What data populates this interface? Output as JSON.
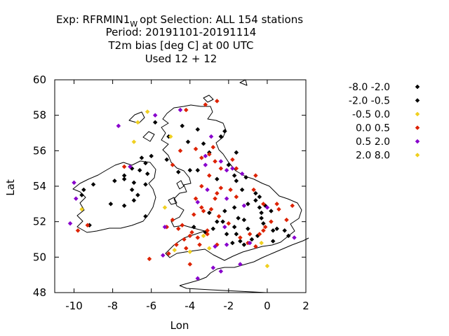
{
  "title": {
    "line1_prefix": "Exp: RFRMIN1",
    "line1_sub": "W",
    "line1_suffix": "opt   Selection: ALL    154 stations",
    "line2": "Period: 20191101-20191114",
    "line3": "T2m bias [deg C] at  00 UTC",
    "line4": "Used  12 + 12"
  },
  "chart_data": {
    "type": "scatter",
    "xlabel": "Lon",
    "ylabel": "Lat",
    "xlim": [
      -11,
      2
    ],
    "ylim": [
      48,
      60
    ],
    "xticks": [
      -10,
      -8,
      -6,
      -4,
      -2,
      0,
      2
    ],
    "yticks": [
      48,
      50,
      52,
      54,
      56,
      58,
      60
    ],
    "grid": false,
    "legend_position": "outside-right",
    "legend": [
      {
        "label": "-8.0 -2.0",
        "color": "#000000"
      },
      {
        "label": "-2.0 -0.5",
        "color": "#000000"
      },
      {
        "label": "-0.5 0.0",
        "color": "#f0d020"
      },
      {
        "label": "0.0 0.5",
        "color": "#dd2200"
      },
      {
        "label": "0.5 2.0",
        "color": "#8800cc"
      },
      {
        "label": "2.0 8.0",
        "color": "#f0d020"
      }
    ],
    "series": [
      {
        "category": 1,
        "points": [
          [
            -5.8,
            57.6
          ],
          [
            -4.4,
            57.4
          ],
          [
            -3.6,
            57.2
          ],
          [
            -2.4,
            56.8
          ],
          [
            -2.2,
            57.1
          ],
          [
            -3.3,
            56.4
          ],
          [
            -4.1,
            56.5
          ],
          [
            -5.1,
            56.8
          ],
          [
            -6.0,
            55.7
          ],
          [
            -6.5,
            55.6
          ],
          [
            -6.3,
            55.3
          ],
          [
            -7.0,
            55.0
          ],
          [
            -6.6,
            54.9
          ],
          [
            -6.2,
            54.7
          ],
          [
            -7.4,
            54.6
          ],
          [
            -6.3,
            54.1
          ],
          [
            -6.9,
            54.2
          ],
          [
            -7.4,
            54.4
          ],
          [
            -7.9,
            54.3
          ],
          [
            -7.0,
            53.8
          ],
          [
            -6.7,
            53.5
          ],
          [
            -6.9,
            53.2
          ],
          [
            -9.0,
            54.1
          ],
          [
            -9.5,
            53.8
          ],
          [
            -9.6,
            53.5
          ],
          [
            -8.1,
            53.0
          ],
          [
            -7.4,
            52.9
          ],
          [
            -6.3,
            52.3
          ],
          [
            -9.2,
            51.8
          ],
          [
            -5.2,
            55.5
          ],
          [
            -4.6,
            54.8
          ],
          [
            -4.0,
            54.9
          ],
          [
            -3.6,
            54.9
          ],
          [
            -3.0,
            55.9
          ],
          [
            -1.6,
            55.9
          ],
          [
            -2.0,
            55.2
          ],
          [
            -1.7,
            54.6
          ],
          [
            -1.1,
            54.5
          ],
          [
            -1.6,
            54.3
          ],
          [
            -2.6,
            54.4
          ],
          [
            -1.3,
            53.8
          ],
          [
            -0.6,
            53.6
          ],
          [
            -0.4,
            53.4
          ],
          [
            -1.0,
            53.0
          ],
          [
            -0.6,
            53.2
          ],
          [
            -1.7,
            52.8
          ],
          [
            -0.4,
            52.8
          ],
          [
            -0.3,
            52.5
          ],
          [
            0.2,
            52.6
          ],
          [
            -0.3,
            52.2
          ],
          [
            -1.2,
            52.1
          ],
          [
            -2.3,
            52.0
          ],
          [
            -1.7,
            51.7
          ],
          [
            -1.0,
            51.6
          ],
          [
            -0.2,
            51.9
          ],
          [
            0.3,
            51.5
          ],
          [
            0.5,
            51.6
          ],
          [
            -2.1,
            51.3
          ],
          [
            -1.6,
            51.3
          ],
          [
            -2.8,
            51.6
          ],
          [
            -3.8,
            51.7
          ],
          [
            -3.2,
            51.4
          ],
          [
            -1.4,
            50.9
          ],
          [
            -0.8,
            51.0
          ],
          [
            -0.5,
            51.2
          ],
          [
            -1.8,
            50.8
          ],
          [
            -1.2,
            50.7
          ],
          [
            0.3,
            50.9
          ],
          [
            0.9,
            51.5
          ],
          [
            1.1,
            51.2
          ],
          [
            -3.0,
            52.5
          ],
          [
            -2.6,
            52.0
          ],
          [
            -0.1,
            52.9
          ],
          [
            -2.2,
            52.6
          ],
          [
            -1.5,
            52.2
          ]
        ]
      },
      {
        "category": 3,
        "points": [
          [
            -4.2,
            58.3
          ],
          [
            -3.2,
            58.6
          ],
          [
            -3.4,
            54.0
          ],
          [
            -2.7,
            53.3
          ],
          [
            -0.6,
            54.6
          ],
          [
            -3.4,
            52.8
          ],
          [
            -1.6,
            53.4
          ],
          [
            -3.7,
            53.3
          ],
          [
            -3.3,
            52.6
          ],
          [
            -3.8,
            52.4
          ],
          [
            -2.9,
            52.7
          ],
          [
            -2.5,
            52.3
          ],
          [
            -4.4,
            51.8
          ],
          [
            -3.9,
            51.4
          ],
          [
            -4.9,
            52.1
          ],
          [
            -5.2,
            51.7
          ],
          [
            -4.6,
            51.6
          ],
          [
            -2.0,
            51.9
          ],
          [
            -1.4,
            51.1
          ],
          [
            -0.9,
            51.3
          ],
          [
            -0.2,
            51.5
          ],
          [
            -0.4,
            51.3
          ],
          [
            -0.1,
            51.7
          ],
          [
            0.2,
            52.0
          ],
          [
            -1.0,
            50.8
          ],
          [
            -0.6,
            50.6
          ],
          [
            -2.6,
            50.7
          ],
          [
            -3.5,
            50.7
          ],
          [
            -4.2,
            50.5
          ],
          [
            -5.1,
            50.2
          ],
          [
            -4.7,
            50.7
          ],
          [
            -4.0,
            51.2
          ],
          [
            -3.6,
            51.1
          ],
          [
            -3.1,
            51.3
          ],
          [
            -2.7,
            55.4
          ],
          [
            -3.0,
            55.8
          ],
          [
            -1.8,
            55.5
          ],
          [
            -2.4,
            55.0
          ],
          [
            -1.6,
            55.0
          ],
          [
            -6.1,
            49.9
          ],
          [
            -7.4,
            55.1
          ],
          [
            -9.8,
            51.5
          ],
          [
            -9.3,
            51.8
          ],
          [
            1.0,
            52.1
          ],
          [
            1.3,
            52.9
          ],
          [
            0.6,
            52.7
          ],
          [
            -0.7,
            53.8
          ],
          [
            -2.6,
            53.6
          ],
          [
            -1.9,
            53.8
          ],
          [
            -4.9,
            55.2
          ],
          [
            -4.5,
            56.0
          ],
          [
            -3.7,
            56.1
          ],
          [
            -2.8,
            56.2
          ],
          [
            -3.4,
            55.6
          ],
          [
            -2.4,
            53.9
          ],
          [
            0.5,
            53.0
          ],
          [
            -0.2,
            53.0
          ],
          [
            -3.0,
            54.6
          ],
          [
            -2.6,
            58.8
          ],
          [
            -4.3,
            51.0
          ],
          [
            -3.1,
            51.5
          ],
          [
            -4.0,
            49.6
          ]
        ]
      },
      {
        "category": 4,
        "points": [
          [
            -10.0,
            54.2
          ],
          [
            -9.9,
            53.3
          ],
          [
            -10.2,
            51.9
          ],
          [
            -7.7,
            57.4
          ],
          [
            -5.8,
            58.0
          ],
          [
            -4.5,
            58.3
          ],
          [
            -2.9,
            56.8
          ],
          [
            -3.2,
            55.7
          ],
          [
            -2.4,
            55.4
          ],
          [
            -2.1,
            54.9
          ],
          [
            -1.3,
            54.7
          ],
          [
            -3.6,
            53.1
          ],
          [
            -2.1,
            53.3
          ],
          [
            -1.2,
            52.9
          ],
          [
            -5.3,
            51.7
          ],
          [
            -2.2,
            51.7
          ],
          [
            0.0,
            52.8
          ],
          [
            1.4,
            51.1
          ],
          [
            -5.4,
            50.1
          ],
          [
            -2.7,
            50.6
          ],
          [
            -2.1,
            50.7
          ],
          [
            -3.6,
            48.8
          ],
          [
            -2.8,
            49.4
          ],
          [
            -2.4,
            49.2
          ],
          [
            -1.4,
            49.6
          ],
          [
            -7.1,
            55.1
          ],
          [
            -3.2,
            55.2
          ],
          [
            -1.8,
            55.0
          ],
          [
            -3.1,
            53.8
          ],
          [
            -0.9,
            50.8
          ]
        ]
      },
      {
        "category": 5,
        "points": [
          [
            -6.2,
            58.2
          ],
          [
            -6.9,
            56.5
          ],
          [
            -5.0,
            56.8
          ],
          [
            -9.6,
            52.7
          ],
          [
            -5.3,
            52.8
          ],
          [
            -4.0,
            50.3
          ],
          [
            -0.0,
            49.5
          ],
          [
            -3.0,
            50.5
          ],
          [
            -4.8,
            50.4
          ],
          [
            -0.3,
            50.8
          ],
          [
            -3.3,
            51.2
          ],
          [
            -6.7,
            57.6
          ]
        ]
      }
    ]
  }
}
